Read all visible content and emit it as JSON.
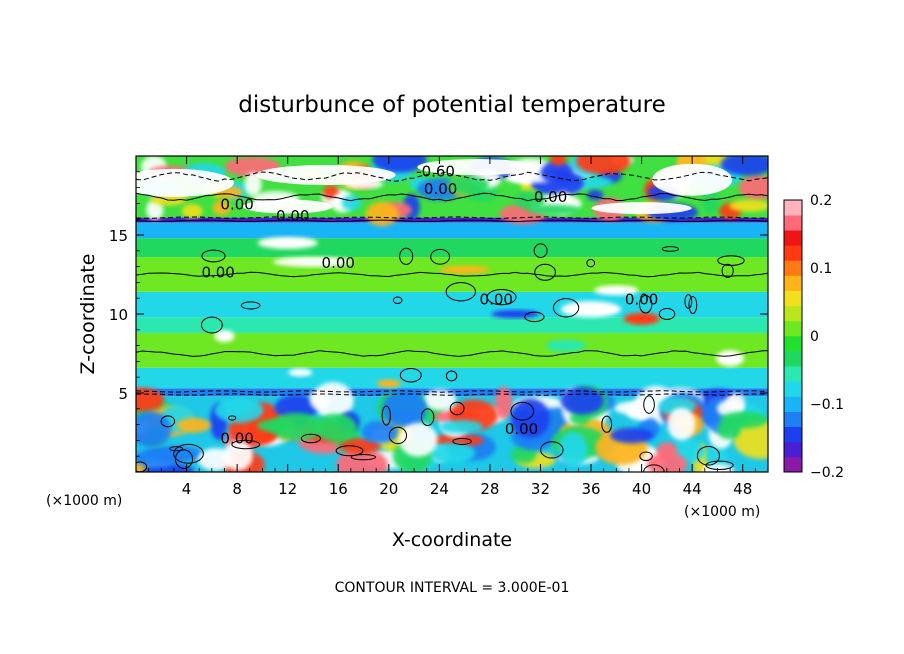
{
  "chart_data": {
    "type": "heatmap",
    "title": "disturbunce of potential temperature",
    "xlabel": "X-coordinate",
    "ylabel": "Z-coordinate",
    "x_unit": "(×1000 m)",
    "z_unit": "(×1000 m)",
    "xlim": [
      0,
      50
    ],
    "ylim": [
      0,
      20
    ],
    "x_ticks": [
      4,
      8,
      12,
      16,
      20,
      24,
      28,
      32,
      36,
      40,
      44,
      48
    ],
    "x_tick_labels": [
      "4",
      "8",
      "12",
      "16",
      "20",
      "24",
      "28",
      "32",
      "36",
      "40",
      "44",
      "48"
    ],
    "y_ticks": [
      5,
      10,
      15
    ],
    "y_tick_labels": [
      "5",
      "10",
      "15"
    ],
    "colorbar": {
      "range": [
        -0.2,
        0.2
      ],
      "tick_values": [
        0.2,
        0.1,
        0,
        -0.1,
        -0.2
      ],
      "tick_labels": [
        "0.2",
        "0.1",
        "0",
        "−0.1",
        "−0.2"
      ],
      "colors": [
        "#8b1aa8",
        "#4a1fd1",
        "#1e3ff0",
        "#1f7ff5",
        "#19b4f5",
        "#22d8e8",
        "#2ae8b0",
        "#20d860",
        "#22e030",
        "#6ee822",
        "#bce61c",
        "#f0e01e",
        "#ffb41a",
        "#ff7a14",
        "#ff3a12",
        "#f01414",
        "#ff6a78",
        "#ffb4bc"
      ]
    },
    "contour_labels": [
      {
        "text": "-0.60",
        "x": 23.7,
        "z": 18.7
      },
      {
        "text": "0.00",
        "x": 24.1,
        "z": 17.6
      },
      {
        "text": "0.00",
        "x": 32.8,
        "z": 17.1
      },
      {
        "text": "0.00",
        "x": 8.0,
        "z": 16.6
      },
      {
        "text": "0.00",
        "x": 12.4,
        "z": 15.9
      },
      {
        "text": "0.00",
        "x": 16.0,
        "z": 12.9
      },
      {
        "text": "0.00",
        "x": 6.5,
        "z": 12.3
      },
      {
        "text": "0.00",
        "x": 40.0,
        "z": 10.6
      },
      {
        "text": "0.00",
        "x": 28.5,
        "z": 10.6
      },
      {
        "text": "0.00",
        "x": 8.0,
        "z": 1.8
      },
      {
        "text": "0.00",
        "x": 30.5,
        "z": 2.4
      }
    ],
    "bands": [
      {
        "z0": 0.0,
        "z1": 4.8,
        "desc": "turbulent lower layer"
      },
      {
        "z0": 4.8,
        "z1": 5.3,
        "value": -0.12
      },
      {
        "z0": 5.3,
        "z1": 6.6,
        "value": -0.07
      },
      {
        "z0": 6.6,
        "z1": 8.8,
        "value": 0.0
      },
      {
        "z0": 8.8,
        "z1": 9.8,
        "value": -0.05
      },
      {
        "z0": 9.8,
        "z1": 11.4,
        "value": -0.08
      },
      {
        "z0": 11.4,
        "z1": 13.6,
        "value": 0.01
      },
      {
        "z0": 13.6,
        "z1": 14.8,
        "value": -0.03
      },
      {
        "z0": 14.8,
        "z1": 15.8,
        "value": -0.1
      },
      {
        "z0": 15.8,
        "z1": 16.1,
        "value": -0.16
      },
      {
        "z0": 16.1,
        "z1": 20.0,
        "desc": "mixed upper layer"
      }
    ],
    "annotation": "CONTOUR INTERVAL = 3.000E-01"
  }
}
